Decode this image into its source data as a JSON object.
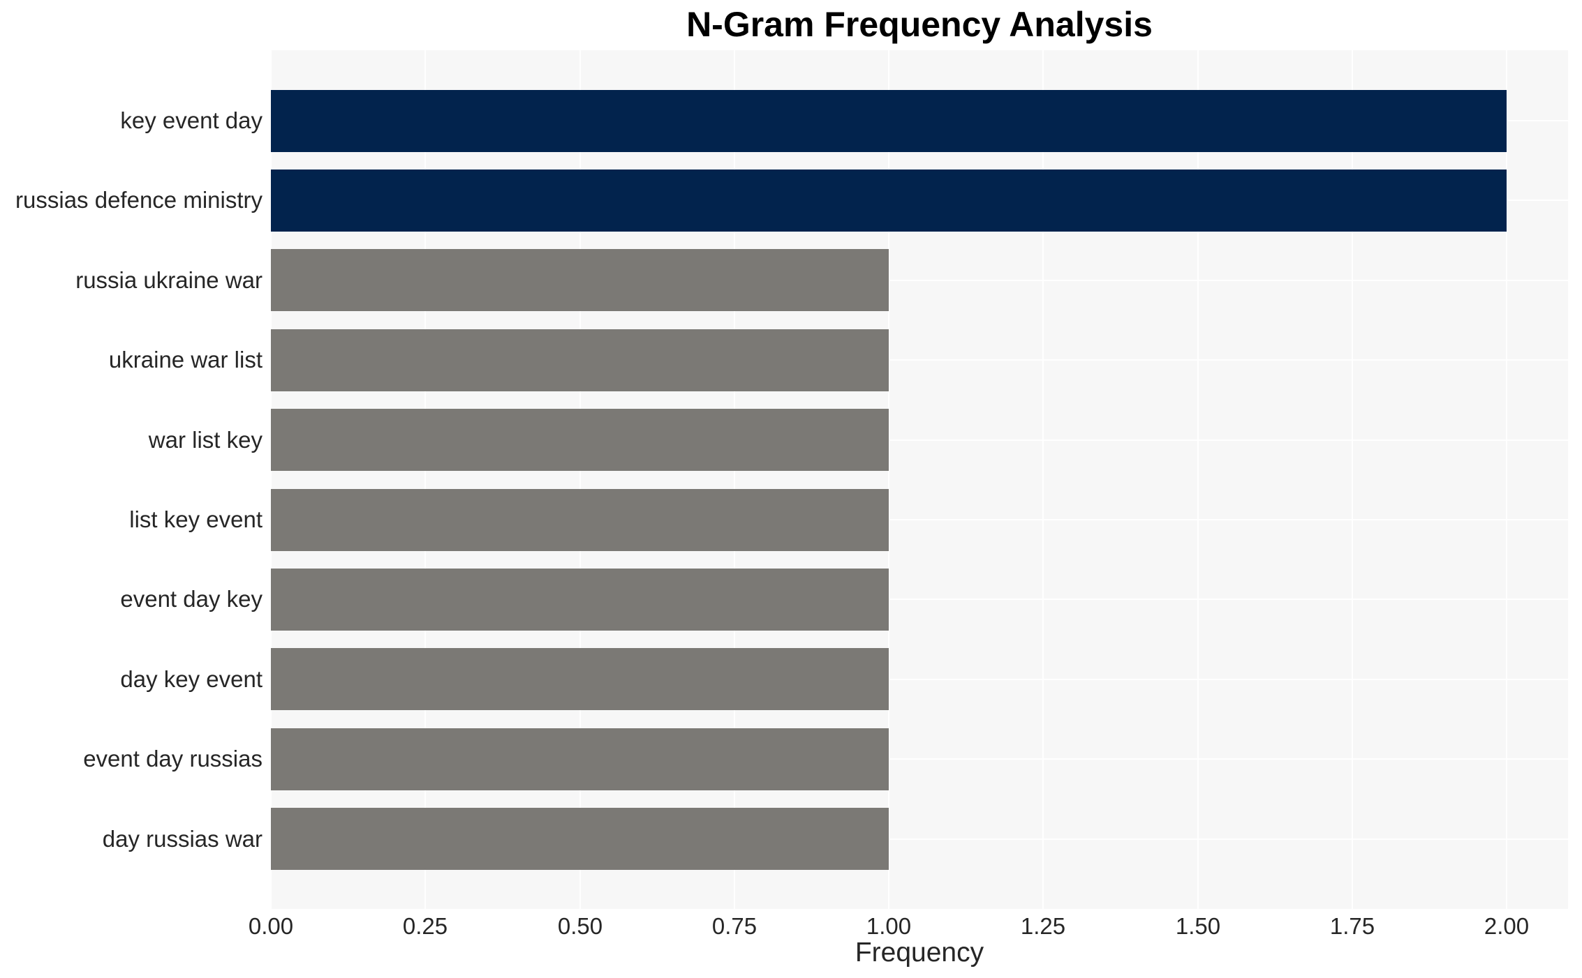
{
  "chart_data": {
    "type": "bar",
    "orientation": "horizontal",
    "title": "N-Gram Frequency Analysis",
    "xlabel": "Frequency",
    "ylabel": "",
    "categories": [
      "key event day",
      "russias defence ministry",
      "russia ukraine war",
      "ukraine war list",
      "war list key",
      "list key event",
      "event day key",
      "day key event",
      "event day russias",
      "day russias war"
    ],
    "values": [
      2,
      2,
      1,
      1,
      1,
      1,
      1,
      1,
      1,
      1
    ],
    "bar_colors": [
      "#02234d",
      "#02234d",
      "#7b7975",
      "#7b7975",
      "#7b7975",
      "#7b7975",
      "#7b7975",
      "#7b7975",
      "#7b7975",
      "#7b7975"
    ],
    "x_tick_labels": [
      "0.00",
      "0.25",
      "0.50",
      "0.75",
      "1.00",
      "1.25",
      "1.50",
      "1.75",
      "2.00"
    ],
    "x_tick_values": [
      0,
      0.25,
      0.5,
      0.75,
      1.0,
      1.25,
      1.5,
      1.75,
      2.0
    ],
    "xlim": [
      0,
      2.1
    ],
    "grid": true,
    "legend": false,
    "colors": {
      "highlight": "#02234d",
      "base": "#7b7975",
      "plot_background": "#f7f7f7",
      "gridline": "#ffffff",
      "tick_text": "#262626",
      "title_text": "#000000",
      "page_background": "#ffffff"
    }
  }
}
